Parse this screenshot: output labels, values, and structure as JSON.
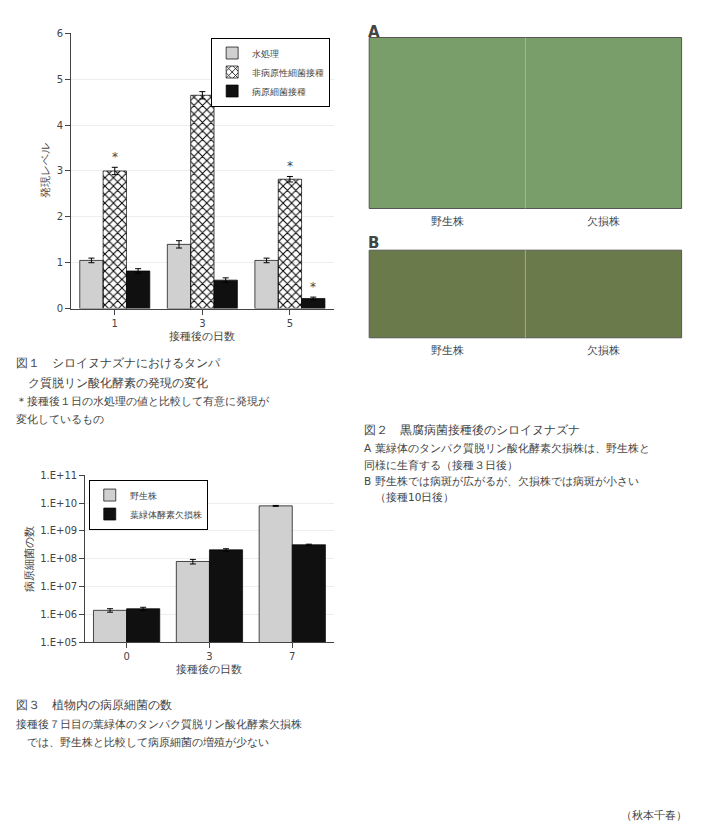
{
  "chart_data": [
    {
      "type": "bar",
      "title": "図１　シロイヌナズナにおけるタンパ\n　ク質脱リン酸化酵素の発現の変化",
      "xlabel": "接種後の日数",
      "ylabel": "発現レベル",
      "categories": [
        1,
        3,
        5
      ],
      "series": [
        {
          "name": "水処理",
          "color": "#d0d0d0",
          "values": [
            1.05,
            1.4,
            1.05
          ],
          "errors": [
            0.05,
            0.08,
            0.05
          ]
        },
        {
          "name": "非病原性細菌接種",
          "color": "#b8b8b8",
          "marker": "x",
          "values": [
            3.0,
            4.65,
            2.82
          ],
          "errors": [
            0.08,
            0.08,
            0.06
          ]
        },
        {
          "name": "病原細菌接種",
          "color": "#101010",
          "values": [
            0.82,
            0.62,
            0.22
          ],
          "errors": [
            0.05,
            0.05,
            0.03
          ]
        }
      ],
      "ylim": [
        0,
        6
      ],
      "yticks": [
        0,
        1,
        2,
        3,
        4,
        5,
        6
      ],
      "grid": true,
      "legend": "upper right",
      "annotations": [
        {
          "text": "*",
          "category": 1,
          "series": "非病原性細菌接種"
        },
        {
          "text": "*",
          "category": 5,
          "series": "非病原性細菌接種"
        },
        {
          "text": "*",
          "category": 5,
          "series": "病原細菌接種"
        },
        {
          "text": "＊接種後１日の水処理の値と比較して有意に発現が"
        },
        {
          "text": "変化しているもの"
        }
      ]
    },
    {
      "type": "photo",
      "title": "図２　黒腐病菌接種後のシロイヌナズナ",
      "categories": [
        "A",
        "B"
      ],
      "colors": [
        "#7a9e6a",
        "#6a7a4a"
      ],
      "annotations": [
        {
          "text": "野生株",
          "category": "A"
        },
        {
          "text": "欠損株",
          "category": "A"
        },
        {
          "text": "野生株",
          "category": "B"
        },
        {
          "text": "欠損株",
          "category": "B"
        },
        {
          "text": "A 葉緑体のタンパク質脱リン酸化酵素欠損株は、野生株と"
        },
        {
          "text": "同様に生育する（接種３日後）"
        },
        {
          "text": "B 野生株では病斑が広がるが、欠損株では病斑が小さい"
        },
        {
          "text": "　（接種10日後）"
        }
      ]
    },
    {
      "type": "bar",
      "title": "図３　植物内の病原細菌の数",
      "xlabel": "接種後の日数",
      "ylabel": "病原細菌の数",
      "categories": [
        0,
        3,
        7
      ],
      "series": [
        {
          "name": "野生株",
          "color": "#d0d0d0",
          "values": [
            1400000,
            80000000,
            8000000000
          ],
          "errors": [
            200000,
            15000000,
            300000000
          ]
        },
        {
          "name": "葉緑体酵素欠損株",
          "color": "#101010",
          "values": [
            1600000,
            210000000,
            320000000
          ],
          "errors": [
            200000,
            20000000,
            15000000
          ]
        }
      ],
      "log": "y",
      "ylim": [
        100000,
        100000000000
      ],
      "yticks": [
        {
          "value": 100000,
          "label": "1.E+05"
        },
        {
          "value": 1000000,
          "label": "1.E+06"
        },
        {
          "value": 10000000,
          "label": "1.E+07"
        },
        {
          "value": 100000000,
          "label": "1.E+08"
        },
        {
          "value": 1000000000,
          "label": "1.E+09"
        },
        {
          "value": 10000000000,
          "label": "1.E+10"
        },
        {
          "value": 100000000000,
          "label": "1.E+11"
        }
      ],
      "grid": true,
      "legend": "upper left",
      "annotations": [
        {
          "text": "接種後７日目の葉緑体のタンパク質脱リン酸化酵素欠損株"
        },
        {
          "text": "　では、野生株と比較して病原細菌の増殖が少ない"
        }
      ]
    }
  ],
  "annotations": [
    "（秋本千春）"
  ]
}
